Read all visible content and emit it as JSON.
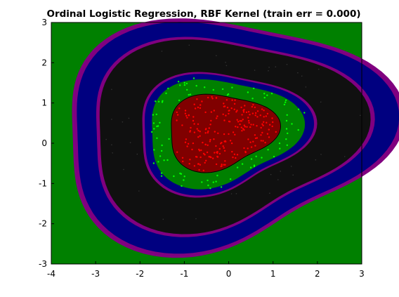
{
  "chart_data": {
    "type": "heatmap",
    "title": "Ordinal Logistic Regression, RBF Kernel (train err = 0.000)",
    "xlabel": "",
    "ylabel": "",
    "xlim": [
      -4,
      3
    ],
    "ylim": [
      -3,
      3
    ],
    "x_ticks": [
      "-4",
      "-3",
      "-2",
      "-1",
      "0",
      "1",
      "2",
      "3"
    ],
    "y_ticks": [
      "-3",
      "-2",
      "-1",
      "0",
      "1",
      "2",
      "3"
    ],
    "grid": false,
    "legend": "none",
    "region_colors": {
      "outer_green": "#008000",
      "blue": "#000080",
      "purple": "#800080",
      "black": "#101010",
      "inner_green": "#008000",
      "red_core": "#800000"
    },
    "regions_outside_in": [
      {
        "class": "outer",
        "color": "#008000"
      },
      {
        "class": "band-2",
        "color": "#000080"
      },
      {
        "class": "band-3",
        "color": "#101010"
      },
      {
        "class": "band-4",
        "color": "#008000"
      },
      {
        "class": "core",
        "color": "#800000"
      }
    ],
    "point_series": [
      {
        "color": "#ff0000",
        "region": "core",
        "count": 220
      },
      {
        "color": "#00ff00",
        "region": "inner ring",
        "count": 90
      },
      {
        "color": "#333333",
        "region": "dark ring",
        "count": 40
      }
    ]
  }
}
